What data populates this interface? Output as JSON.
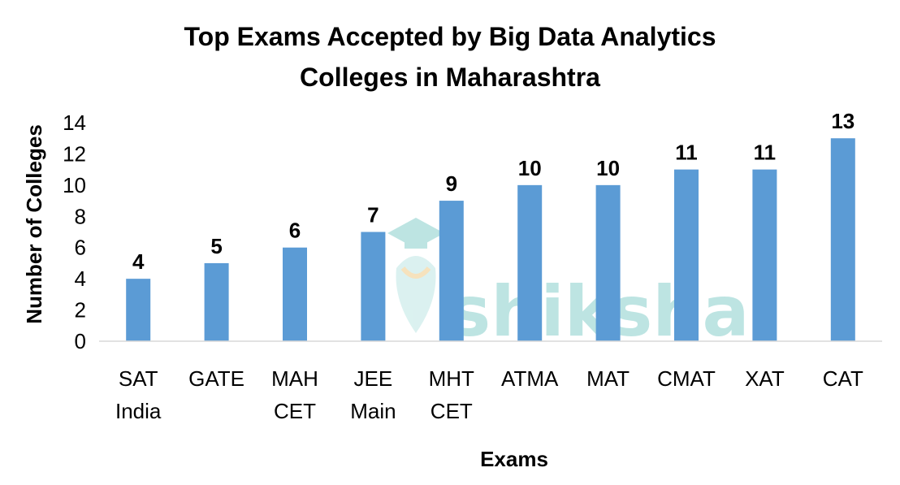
{
  "chart_data": {
    "type": "bar",
    "title_lines": [
      "Top Exams Accepted by Big Data Analytics",
      "Colleges in Maharashtra"
    ],
    "xlabel": "Exams",
    "ylabel": "Number of Colleges",
    "categories": [
      [
        "SAT",
        "India"
      ],
      [
        "GATE"
      ],
      [
        "MAH",
        "CET"
      ],
      [
        "JEE",
        "Main"
      ],
      [
        "MHT",
        "CET"
      ],
      [
        "ATMA"
      ],
      [
        "MAT"
      ],
      [
        "CMAT"
      ],
      [
        "XAT"
      ],
      [
        "CAT"
      ]
    ],
    "values": [
      4,
      5,
      6,
      7,
      9,
      10,
      10,
      11,
      11,
      13
    ],
    "ylim": [
      0,
      14
    ],
    "yticks": [
      0,
      2,
      4,
      6,
      8,
      10,
      12,
      14
    ],
    "bar_color": "#5B9BD5",
    "grid": false,
    "legend": "none",
    "data_labels": true
  },
  "watermark": {
    "text": "shiksha",
    "color": "#A8DCD9",
    "icon": "graduation-cap-icon"
  }
}
